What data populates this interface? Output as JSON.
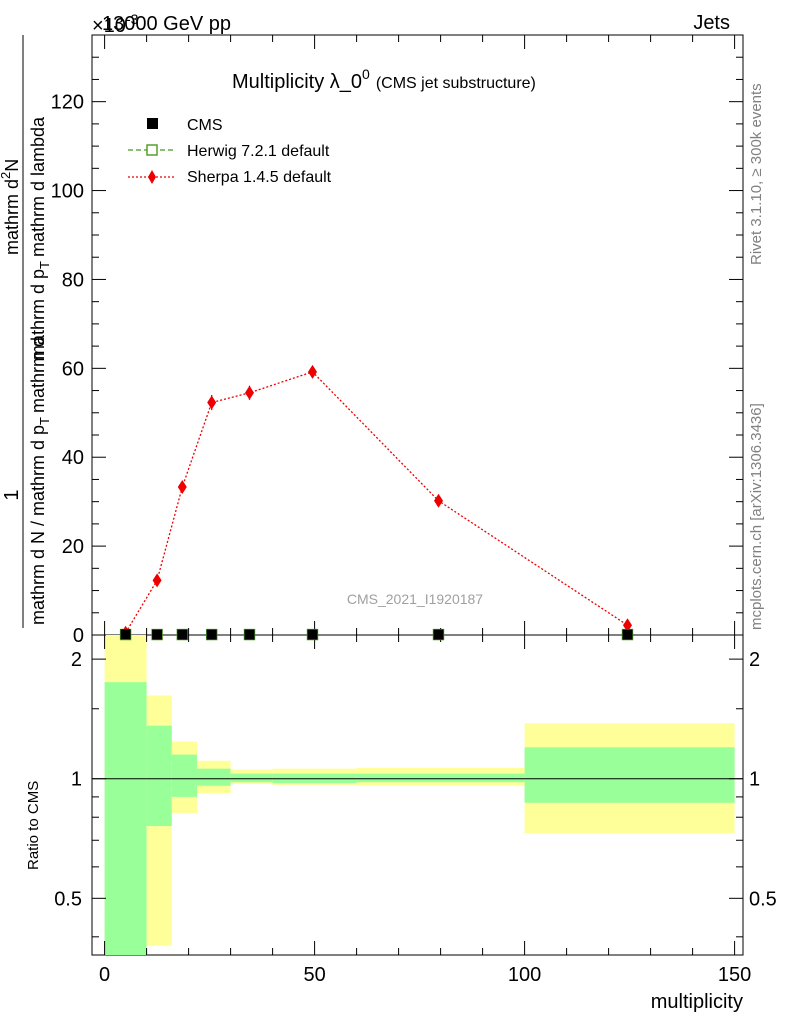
{
  "header": {
    "energy_label": "13000 GeV pp",
    "scale_label": "×10",
    "scale_exponent": "-3",
    "category_label": "Jets"
  },
  "side_labels": {
    "rivet": "Rivet 3.1.10, ≥ 300k events",
    "mcplots": "mcplots.cern.ch [arXiv:1306.3436]"
  },
  "analysis_id": "CMS_2021_I1920187",
  "chart_data": [
    {
      "type": "line",
      "title": "Multiplicity λ_0",
      "title_superscript": "0",
      "subtitle": "(CMS jet substructure)",
      "ylabel_numerator": "1",
      "ylabel_mid": "mathrm d N / mathrm d p",
      "ylabel_mid_sub": "T",
      "ylabel_mid_tail": "mathrm d",
      "ylabel_denominator": "mathrm d",
      "ylabel_denominator_super": "2",
      "ylabel_denominator_tail": "N",
      "ylabel_fraction_bottom": "mathrm d p",
      "ylabel_fraction_bottom_sub": "T",
      "ylabel_fraction_bottom_tail": "mathrm d lambda",
      "xlim": [
        -3,
        152
      ],
      "ylim": [
        0,
        135
      ],
      "yticks": [
        0,
        20,
        40,
        60,
        80,
        100,
        120
      ],
      "ytick_labels": [
        "0",
        "20",
        "40",
        "60",
        "80",
        "100",
        "120"
      ],
      "legend_position": "top-left",
      "series": [
        {
          "name": "CMS",
          "marker": "square",
          "color": "#000000",
          "x": [
            5,
            12.5,
            18.5,
            25.5,
            34.5,
            49.5,
            79.5,
            124.5
          ],
          "values": [
            0.15,
            0.1,
            0.1,
            0.1,
            0.1,
            0.1,
            0.1,
            0.1
          ]
        },
        {
          "name": "Herwig 7.2.1 default",
          "marker": "open-square",
          "color": "#4a9a1f",
          "x": [
            5,
            12.5,
            18.5,
            25.5,
            34.5,
            49.5,
            79.5,
            124.5
          ],
          "values": [
            0.1,
            0.1,
            0.1,
            0.1,
            0.1,
            0.1,
            0.1,
            0.1
          ]
        },
        {
          "name": "Sherpa 1.4.5 default",
          "marker": "diamond",
          "color": "#ee0000",
          "x": [
            5,
            12.5,
            18.5,
            25.5,
            34.5,
            49.5,
            79.5,
            124.5
          ],
          "values": [
            0.5,
            12.3,
            33.3,
            52.3,
            54.5,
            59.2,
            30.2,
            2.2
          ],
          "errors": [
            0.3,
            0.8,
            1.2,
            1.7,
            1.6,
            1.1,
            0.8,
            0.3
          ]
        }
      ]
    },
    {
      "type": "area",
      "title": "",
      "ylabel": "Ratio to CMS",
      "xlabel": "multiplicity",
      "xlim": [
        -3,
        152
      ],
      "ylim": [
        0.36,
        2.3
      ],
      "ylog": true,
      "xticks": [
        0,
        50,
        100,
        150
      ],
      "xtick_labels": [
        "0",
        "50",
        "100",
        "150"
      ],
      "yticks": [
        0.5,
        1,
        2
      ],
      "ytick_labels": [
        "0.5",
        "1",
        "2"
      ],
      "reference_line": 1,
      "bins": [
        {
          "x0": 0,
          "x1": 10,
          "green": [
            0.36,
            1.75
          ],
          "yellow": [
            0.36,
            2.3
          ]
        },
        {
          "x0": 10,
          "x1": 16,
          "green": [
            0.76,
            1.36
          ],
          "yellow": [
            0.38,
            1.62
          ]
        },
        {
          "x0": 16,
          "x1": 22,
          "green": [
            0.9,
            1.15
          ],
          "yellow": [
            0.82,
            1.24
          ]
        },
        {
          "x0": 22,
          "x1": 30,
          "green": [
            0.96,
            1.06
          ],
          "yellow": [
            0.92,
            1.11
          ]
        },
        {
          "x0": 30,
          "x1": 40,
          "green": [
            0.98,
            1.03
          ],
          "yellow": [
            0.97,
            1.055
          ]
        },
        {
          "x0": 40,
          "x1": 60,
          "green": [
            0.975,
            1.03
          ],
          "yellow": [
            0.965,
            1.06
          ]
        },
        {
          "x0": 60,
          "x1": 100,
          "green": [
            0.98,
            1.03
          ],
          "yellow": [
            0.96,
            1.065
          ]
        },
        {
          "x0": 100,
          "x1": 150,
          "green": [
            0.87,
            1.2
          ],
          "yellow": [
            0.73,
            1.38
          ]
        }
      ]
    }
  ]
}
